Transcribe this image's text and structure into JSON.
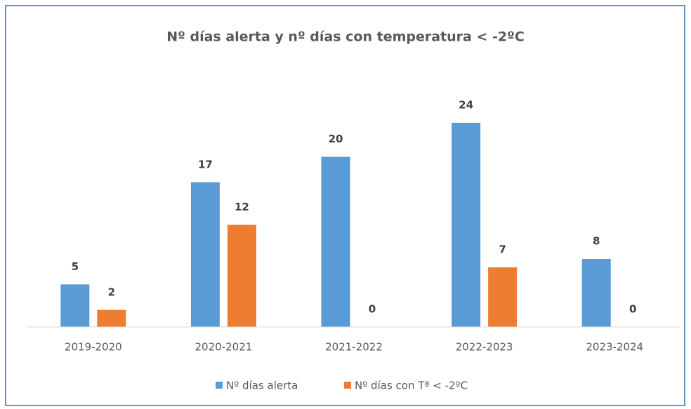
{
  "chart_data": {
    "type": "bar",
    "title": "Nº días alerta y nº días con temperatura < -2ºC",
    "categories": [
      "2019-2020",
      "2020-2021",
      "2021-2022",
      "2022-2023",
      "2023-2024"
    ],
    "series": [
      {
        "name": "Nº días alerta",
        "color": "#5b9bd5",
        "values": [
          5,
          17,
          20,
          24,
          8
        ]
      },
      {
        "name": "Nº días con Tª < -2ºC",
        "color": "#ed7d31",
        "values": [
          2,
          12,
          0,
          7,
          0
        ]
      }
    ]
  }
}
